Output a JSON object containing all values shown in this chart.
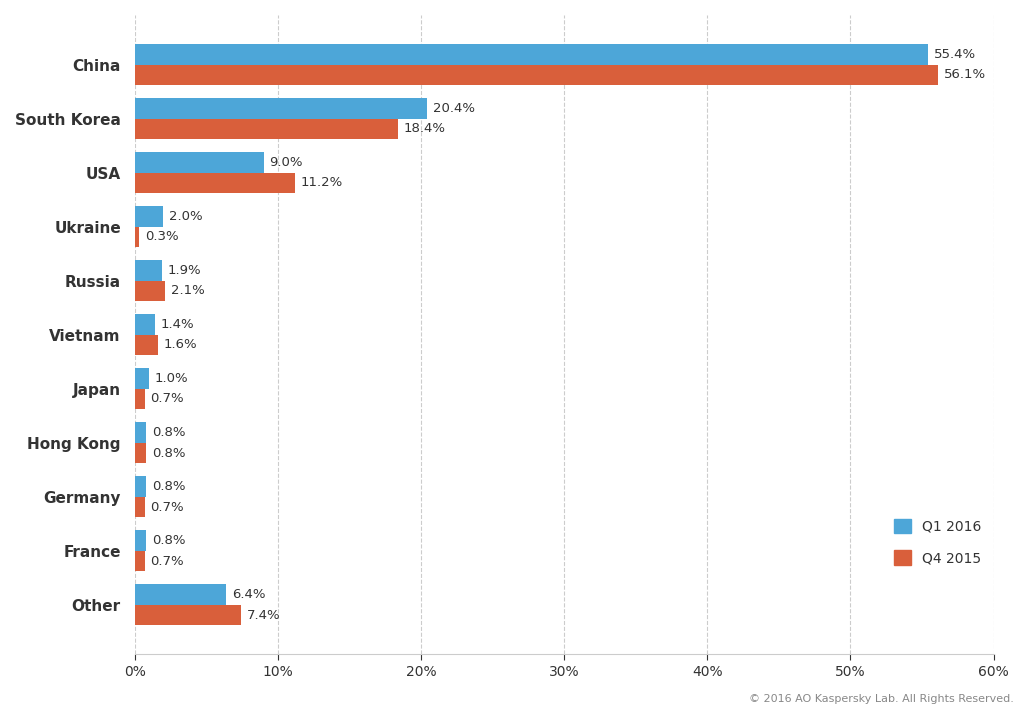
{
  "categories": [
    "China",
    "South Korea",
    "USA",
    "Ukraine",
    "Russia",
    "Vietnam",
    "Japan",
    "Hong Kong",
    "Germany",
    "France",
    "Other"
  ],
  "q1_2016": [
    55.4,
    20.4,
    9.0,
    2.0,
    1.9,
    1.4,
    1.0,
    0.8,
    0.8,
    0.8,
    6.4
  ],
  "q4_2015": [
    56.1,
    18.4,
    11.2,
    0.3,
    2.1,
    1.6,
    0.7,
    0.8,
    0.7,
    0.7,
    7.4
  ],
  "q1_color": "#4da6d8",
  "q4_color": "#d95f3b",
  "background_color": "#ffffff",
  "grid_color": "#cccccc",
  "label_color": "#333333",
  "legend_q1": "Q1 2016",
  "legend_q4": "Q4 2015",
  "xlim": [
    0,
    60
  ],
  "xticks": [
    0,
    10,
    20,
    30,
    40,
    50,
    60
  ],
  "xtick_labels": [
    "0%",
    "10%",
    "20%",
    "30%",
    "40%",
    "50%",
    "60%"
  ],
  "footer_text": "© 2016 AO Kaspersky Lab. All Rights Reserved.",
  "bar_height": 0.38,
  "label_fontsize": 9.5,
  "tick_fontsize": 10,
  "ytick_fontsize": 11,
  "footer_fontsize": 8
}
